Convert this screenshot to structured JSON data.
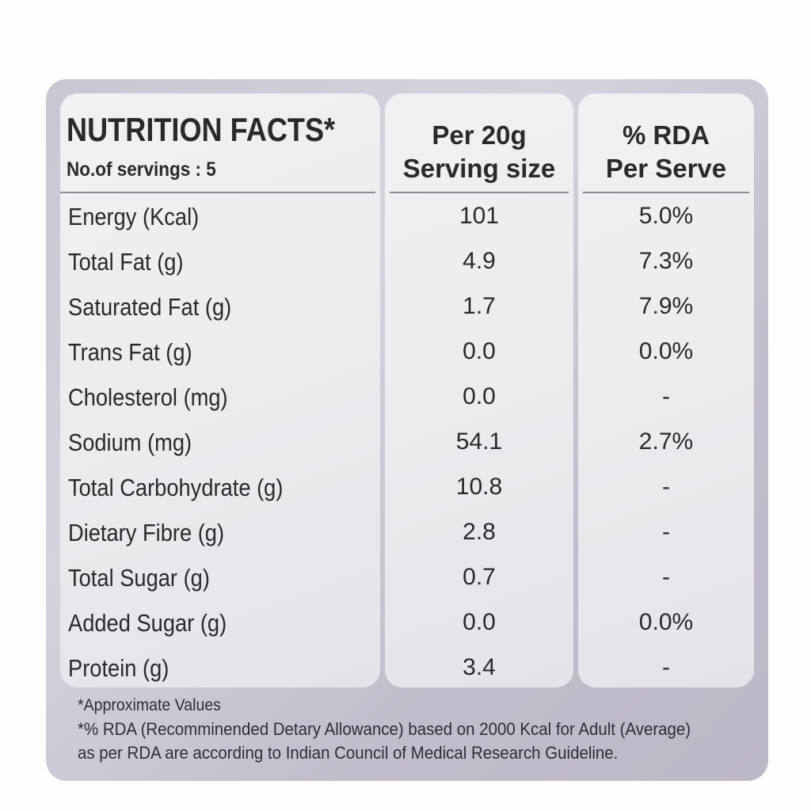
{
  "title": "NUTRITION FACTS*",
  "servings": "No.of servings : 5",
  "column_headers": {
    "per_serving": [
      "Per 20g",
      "Serving size"
    ],
    "rda": [
      "% RDA",
      "Per Serve"
    ]
  },
  "nutrients": [
    {
      "name": "Energy (Kcal)",
      "per_20g": "101",
      "rda": "5.0%"
    },
    {
      "name": "Total Fat (g)",
      "per_20g": "4.9",
      "rda": "7.3%"
    },
    {
      "name": "Saturated Fat (g)",
      "per_20g": "1.7",
      "rda": "7.9%"
    },
    {
      "name": "Trans Fat (g)",
      "per_20g": "0.0",
      "rda": "0.0%"
    },
    {
      "name": "Cholesterol (mg)",
      "per_20g": "0.0",
      "rda": "-"
    },
    {
      "name": "Sodium (mg)",
      "per_20g": "54.1",
      "rda": "2.7%"
    },
    {
      "name": "Total Carbohydrate (g)",
      "per_20g": "10.8",
      "rda": "-"
    },
    {
      "name": "Dietary Fibre (g)",
      "per_20g": "2.8",
      "rda": "-"
    },
    {
      "name": "Total Sugar (g)",
      "per_20g": "0.7",
      "rda": "-"
    },
    {
      "name": "Added Sugar (g)",
      "per_20g": "0.0",
      "rda": "0.0%"
    },
    {
      "name": "Protein (g)",
      "per_20g": "3.4",
      "rda": "-"
    }
  ],
  "footnotes": [
    "*Approximate Values",
    "*% RDA (Recomminended Detary Allowance) based on 2000 Kcal for Adult (Average)",
    "as per RDA are according to Indian Council of Medical Research Guideline."
  ]
}
